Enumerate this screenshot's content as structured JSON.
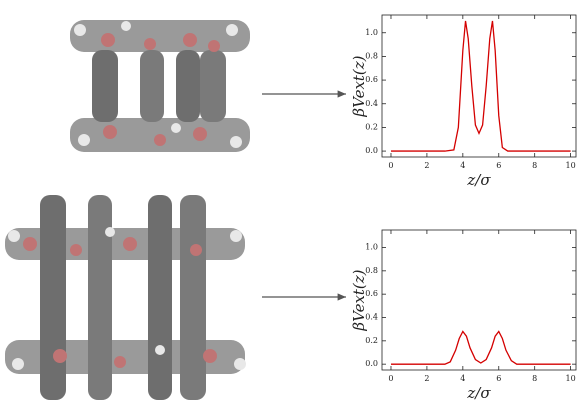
{
  "chart_data": [
    {
      "type": "line",
      "xlabel": "z/σ",
      "ylabel": "βVext(z)",
      "color": "#d40000",
      "x": [
        0,
        1,
        2,
        3,
        3.5,
        3.75,
        4.0,
        4.15,
        4.3,
        4.5,
        4.7,
        4.9,
        5.1,
        5.3,
        5.5,
        5.65,
        5.8,
        6.0,
        6.2,
        6.5,
        7,
        8,
        9,
        10
      ],
      "values": [
        0,
        0,
        0,
        0,
        0.01,
        0.2,
        0.85,
        1.1,
        0.95,
        0.55,
        0.22,
        0.15,
        0.22,
        0.55,
        0.95,
        1.1,
        0.85,
        0.3,
        0.03,
        0,
        0,
        0,
        0,
        0
      ],
      "xlim": [
        -0.5,
        10.3
      ],
      "ylim": [
        -0.05,
        1.15
      ],
      "xticks": [
        0,
        2,
        4,
        6,
        8,
        10
      ],
      "yticks": [
        {
          "value": 0,
          "label": "0.0"
        },
        {
          "value": 0.2,
          "label": "0.2"
        },
        {
          "value": 0.4,
          "label": "0.4"
        },
        {
          "value": 0.6,
          "label": "0.6"
        },
        {
          "value": 0.8,
          "label": "0.8"
        },
        {
          "value": 1,
          "label": "1.0"
        }
      ]
    },
    {
      "type": "line",
      "xlabel": "z/σ",
      "ylabel": "βVext(z)",
      "color": "#d40000",
      "x": [
        0,
        1,
        2,
        3,
        3.3,
        3.6,
        3.8,
        4,
        4.2,
        4.4,
        4.7,
        5,
        5.3,
        5.6,
        5.8,
        6,
        6.2,
        6.4,
        6.7,
        7,
        8,
        9,
        10
      ],
      "values": [
        0,
        0,
        0,
        0,
        0.02,
        0.12,
        0.22,
        0.28,
        0.24,
        0.14,
        0.04,
        0.01,
        0.04,
        0.14,
        0.24,
        0.28,
        0.22,
        0.12,
        0.03,
        0,
        0,
        0,
        0
      ],
      "xlim": [
        -0.5,
        10.3
      ],
      "ylim": [
        -0.05,
        1.15
      ],
      "xticks": [
        0,
        2,
        4,
        6,
        8,
        10
      ],
      "yticks": [
        {
          "value": 0,
          "label": "0.0"
        },
        {
          "value": 0.2,
          "label": "0.2"
        },
        {
          "value": 0.4,
          "label": "0.4"
        },
        {
          "value": 0.6,
          "label": "0.6"
        },
        {
          "value": 0.8,
          "label": "0.8"
        },
        {
          "value": 1,
          "label": "1.0"
        }
      ]
    }
  ]
}
